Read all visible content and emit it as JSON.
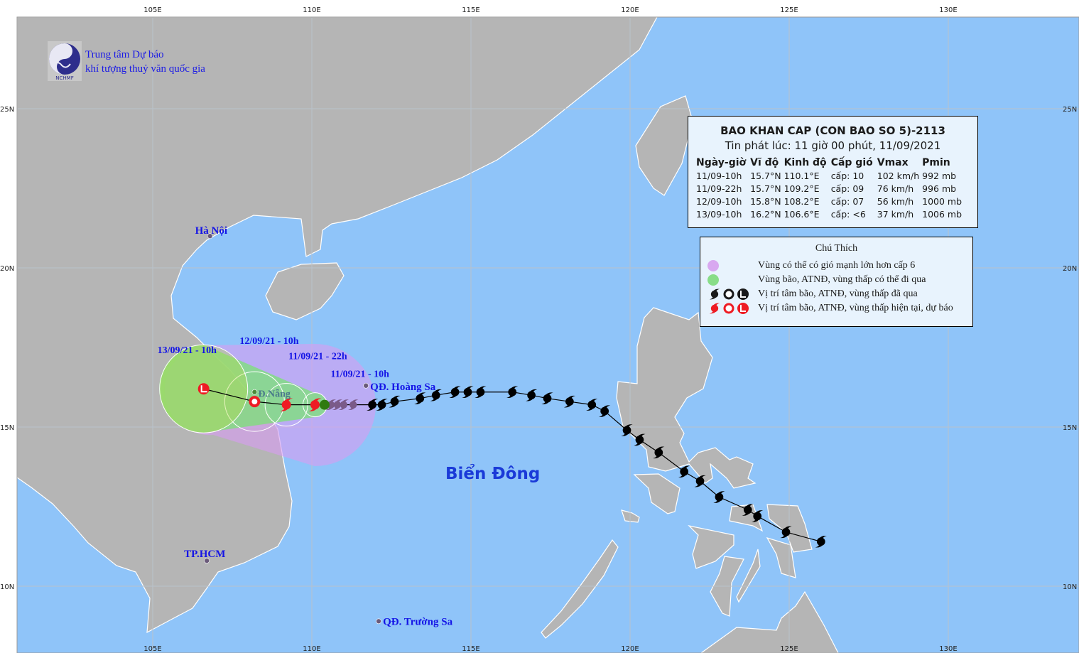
{
  "map": {
    "colors": {
      "sea": "#8fc4f9",
      "land": "#b5b5b5",
      "grid": "#b9c2cc",
      "purple_zone": "#d79cf0",
      "green_zone": "#7ee07a",
      "track_past": "#000000",
      "track_forecast": "#ee1c24",
      "label_blue": "#1414e6"
    },
    "lon_ticks": [
      "105E",
      "110E",
      "115E",
      "120E",
      "125E",
      "130E"
    ],
    "lat_ticks": [
      "25N",
      "20N",
      "15N",
      "10N"
    ],
    "sea_name": "Biển Đông",
    "places": [
      {
        "name": "Hà Nội",
        "lon": 106.8,
        "lat": 21.0
      },
      {
        "name": "Đ.Nẵng",
        "lon": 108.2,
        "lat": 16.1
      },
      {
        "name": "TP.HCM",
        "lon": 106.7,
        "lat": 10.8
      },
      {
        "name": "QĐ. Hoàng Sa",
        "lon": 111.7,
        "lat": 16.3
      },
      {
        "name": "QĐ. Trường Sa",
        "lon": 112.1,
        "lat": 8.9
      }
    ],
    "past_track": [
      [
        126.0,
        11.4
      ],
      [
        124.9,
        11.7
      ],
      [
        124.0,
        12.2
      ],
      [
        123.7,
        12.4
      ],
      [
        122.8,
        12.8
      ],
      [
        122.2,
        13.3
      ],
      [
        121.7,
        13.6
      ],
      [
        120.9,
        14.2
      ],
      [
        120.3,
        14.6
      ],
      [
        119.9,
        14.9
      ],
      [
        119.2,
        15.5
      ],
      [
        118.8,
        15.7
      ],
      [
        118.1,
        15.8
      ],
      [
        117.4,
        15.9
      ],
      [
        116.9,
        16.0
      ],
      [
        116.3,
        16.1
      ],
      [
        115.3,
        16.1
      ],
      [
        114.9,
        16.1
      ],
      [
        114.5,
        16.1
      ],
      [
        113.9,
        16.0
      ],
      [
        113.4,
        15.9
      ],
      [
        112.6,
        15.8
      ],
      [
        112.2,
        15.7
      ],
      [
        111.9,
        15.7
      ]
    ],
    "recent_track": [
      [
        111.3,
        15.7
      ],
      [
        111.0,
        15.7
      ],
      [
        110.8,
        15.7
      ],
      [
        110.6,
        15.7
      ],
      [
        110.4,
        15.7
      ]
    ],
    "forecast": [
      {
        "label": "11/09/21 - 10h",
        "lon": 110.1,
        "lat": 15.7,
        "symbol": "storm"
      },
      {
        "label": "11/09/21 - 22h",
        "lon": 109.2,
        "lat": 15.7,
        "symbol": "storm"
      },
      {
        "label": "12/09/21 - 10h",
        "lon": 108.2,
        "lat": 15.8,
        "symbol": "depression"
      },
      {
        "label": "13/09/21 - 10h",
        "lon": 106.6,
        "lat": 16.2,
        "symbol": "low"
      }
    ]
  },
  "logo": {
    "line1": "Trung tâm Dự báo",
    "line2": "khí tượng thuỷ văn quốc gia",
    "abbr": "NCHMF"
  },
  "info": {
    "title": "BAO KHAN CAP (CON BAO SO 5)-2113",
    "issued": "Tin phát lúc: 11 giờ 00 phút, 11/09/2021",
    "headers": [
      "Ngày-giờ",
      "Vĩ độ",
      "Kinh độ",
      "Cấp gió",
      "Vmax",
      "Pmin"
    ],
    "rows": [
      [
        "11/09-10h",
        "15.7°N",
        "110.1°E",
        "cấp: 10",
        "102 km/h",
        "992 mb"
      ],
      [
        "11/09-22h",
        "15.7°N",
        "109.2°E",
        "cấp: 09",
        "76 km/h",
        "996 mb"
      ],
      [
        "12/09-10h",
        "15.8°N",
        "108.2°E",
        "cấp: 07",
        "56 km/h",
        "1000 mb"
      ],
      [
        "13/09-10h",
        "16.2°N",
        "106.6°E",
        "cấp: <6",
        "37 km/h",
        "1006 mb"
      ]
    ]
  },
  "legend": {
    "title": "Chú Thích",
    "items": [
      "Vùng có thể có gió mạnh lớn hơn cấp 6",
      "Vùng bão, ATNĐ, vùng thấp có thể đi qua",
      "Vị trí tâm bão, ATNĐ, vùng thấp đã qua",
      "Vị trí tâm bão, ATNĐ, vùng thấp hiện tại, dự báo"
    ]
  }
}
